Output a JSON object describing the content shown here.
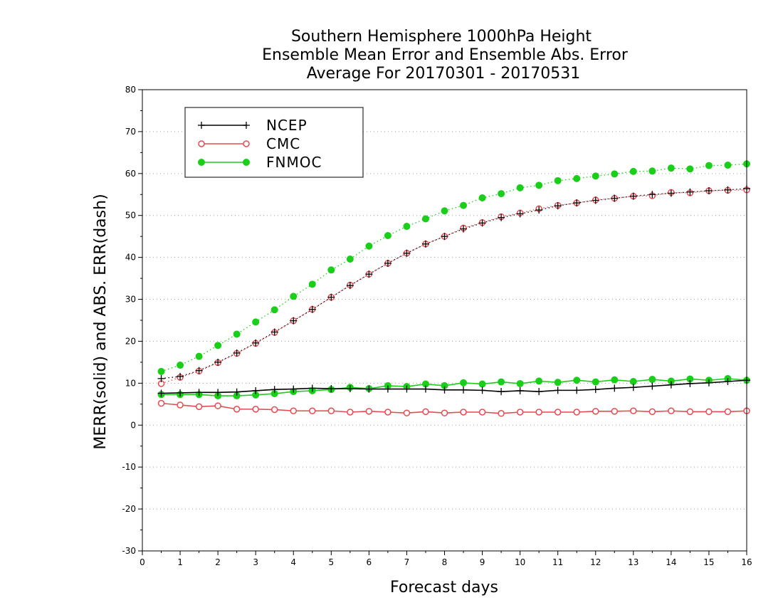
{
  "chart_data": {
    "type": "line",
    "title_lines": [
      "Southern Hemisphere 1000hPa Height",
      "Ensemble Mean Error and Ensemble Abs. Error",
      "Average For 20170301 - 20170531"
    ],
    "xlabel": "Forecast days",
    "ylabel": "MERR(solid) and ABS. ERR(dash)",
    "xlim": [
      0,
      16
    ],
    "ylim": [
      -30,
      80
    ],
    "xticks": [
      "0",
      "1",
      "2",
      "3",
      "4",
      "5",
      "6",
      "7",
      "8",
      "9",
      "10",
      "11",
      "12",
      "13",
      "14",
      "15",
      "16"
    ],
    "yticks": [
      "-30",
      "-20",
      "-10",
      "0",
      "10",
      "20",
      "30",
      "40",
      "50",
      "60",
      "70",
      "80"
    ],
    "grid": "horizontal dotted",
    "legend_position": "top-left",
    "x": [
      0.5,
      1,
      1.5,
      2,
      2.5,
      3,
      3.5,
      4,
      4.5,
      5,
      5.5,
      6,
      6.5,
      7,
      7.5,
      8,
      8.5,
      9,
      9.5,
      10,
      10.5,
      11,
      11.5,
      12,
      12.5,
      13,
      13.5,
      14,
      14.5,
      15,
      15.5,
      16
    ],
    "series": [
      {
        "name": "NCEP",
        "color": "#000000",
        "marker": "plus",
        "merr": [
          7.6,
          7.7,
          7.8,
          7.8,
          7.9,
          8.2,
          8.5,
          8.6,
          8.8,
          8.7,
          8.7,
          8.6,
          8.6,
          8.6,
          8.6,
          8.4,
          8.4,
          8.3,
          8.0,
          8.2,
          8.0,
          8.3,
          8.3,
          8.5,
          8.8,
          9.0,
          9.3,
          9.6,
          9.9,
          10.1,
          10.4,
          10.7
        ],
        "abserr": [
          11.1,
          11.6,
          13.0,
          15.0,
          17.2,
          19.6,
          22.2,
          24.9,
          27.6,
          30.5,
          33.3,
          36.0,
          38.6,
          41.0,
          43.2,
          45.0,
          46.8,
          48.2,
          49.5,
          50.4,
          51.3,
          52.3,
          53.0,
          53.6,
          54.1,
          54.6,
          55.0,
          55.3,
          55.6,
          55.9,
          56.1,
          56.4
        ]
      },
      {
        "name": "CMC",
        "color": "#e8494f",
        "marker": "open-circle",
        "merr": [
          5.2,
          4.8,
          4.4,
          4.6,
          3.8,
          3.8,
          3.7,
          3.4,
          3.4,
          3.4,
          3.1,
          3.3,
          3.1,
          2.9,
          3.2,
          2.9,
          3.1,
          3.1,
          2.8,
          3.1,
          3.1,
          3.1,
          3.1,
          3.3,
          3.3,
          3.4,
          3.2,
          3.4,
          3.2,
          3.2,
          3.2,
          3.4
        ],
        "abserr": [
          9.9,
          11.4,
          12.9,
          14.9,
          17.1,
          19.5,
          22.1,
          24.9,
          27.6,
          30.5,
          33.4,
          36.0,
          38.6,
          41.0,
          43.2,
          45.0,
          47.0,
          48.3,
          49.7,
          50.6,
          51.6,
          52.4,
          53.0,
          53.7,
          54.1,
          54.6,
          54.7,
          55.5,
          55.4,
          55.9,
          56.0,
          56.1
        ]
      },
      {
        "name": "FNMOC",
        "color": "#19cf19",
        "marker": "filled-circle",
        "merr": [
          7.3,
          7.3,
          7.3,
          7.0,
          7.0,
          7.2,
          7.5,
          8.0,
          8.2,
          8.5,
          9.0,
          8.7,
          9.4,
          9.2,
          9.8,
          9.4,
          10.1,
          9.8,
          10.3,
          9.9,
          10.5,
          10.2,
          10.7,
          10.3,
          10.8,
          10.4,
          10.9,
          10.5,
          11.0,
          10.7,
          11.1,
          10.7
        ],
        "abserr": [
          12.8,
          14.3,
          16.4,
          19.0,
          21.7,
          24.6,
          27.5,
          30.7,
          33.6,
          37.0,
          39.6,
          42.7,
          45.2,
          47.4,
          49.2,
          51.1,
          52.4,
          54.2,
          55.2,
          56.6,
          57.2,
          58.3,
          58.8,
          59.4,
          59.9,
          60.5,
          60.6,
          61.3,
          61.1,
          61.9,
          62.0,
          62.3
        ]
      }
    ]
  }
}
